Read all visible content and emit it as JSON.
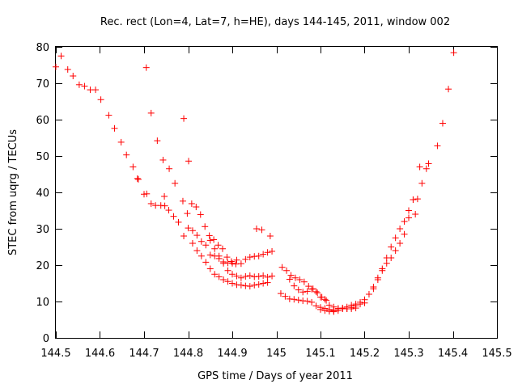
{
  "chart_data": {
    "type": "scatter",
    "title": "Rec. rect (Lon=4, Lat=7, h=HE), days 144-145, 2011, window 002",
    "xlabel": "GPS time / Days of year 2011",
    "ylabel": "STEC from uqrg / TECUs",
    "xlim": [
      144.5,
      145.5
    ],
    "ylim": [
      0,
      80
    ],
    "xticks": [
      "144.5",
      "144.6",
      "144.7",
      "144.8",
      "144.9",
      "145",
      "145.1",
      "145.2",
      "145.3",
      "145.4",
      "145.5"
    ],
    "yticks": [
      "0",
      "10",
      "20",
      "30",
      "40",
      "50",
      "60",
      "70",
      "80"
    ],
    "marker": "+",
    "color": "#ff0000",
    "series": [
      {
        "name": "STEC",
        "x": [
          144.5,
          144.512,
          144.527,
          144.539,
          144.553,
          144.565,
          144.578,
          144.59,
          144.602,
          144.62,
          144.633,
          144.648,
          144.66,
          144.675,
          144.685,
          144.7,
          144.705,
          144.716,
          144.73,
          144.743,
          144.746,
          144.757,
          144.77,
          144.79,
          144.801,
          144.687,
          144.706,
          144.716,
          144.726,
          144.738,
          144.747,
          144.756,
          144.767,
          144.778,
          144.788,
          144.798,
          144.808,
          144.818,
          144.828,
          144.838,
          144.848,
          144.858,
          144.868,
          144.878,
          144.888,
          144.898,
          144.908,
          144.79,
          144.8,
          144.81,
          144.82,
          144.83,
          144.84,
          144.85,
          144.86,
          144.87,
          144.88,
          144.89,
          144.9,
          144.91,
          144.92,
          144.93,
          144.94,
          144.95,
          144.96,
          144.97,
          144.98,
          144.99,
          144.81,
          144.82,
          144.83,
          144.84,
          144.85,
          144.86,
          144.87,
          144.88,
          144.89,
          144.9,
          144.91,
          144.92,
          144.93,
          144.94,
          144.95,
          144.96,
          144.97,
          144.98,
          144.85,
          144.86,
          144.87,
          144.88,
          144.89,
          144.9,
          144.91,
          144.92,
          144.93,
          144.94,
          144.95,
          144.96,
          144.97,
          144.98,
          144.99,
          144.955,
          144.967,
          144.986,
          145.013,
          145.023,
          145.033,
          145.043,
          145.053,
          145.063,
          145.073,
          145.083,
          145.093,
          145.103,
          145.113,
          145.01,
          145.02,
          145.03,
          145.04,
          145.05,
          145.06,
          145.07,
          145.08,
          145.09,
          145.1,
          145.11,
          145.12,
          145.13,
          145.03,
          145.04,
          145.05,
          145.06,
          145.07,
          145.08,
          145.09,
          145.1,
          145.11,
          145.12,
          145.13,
          145.14,
          145.15,
          145.16,
          145.17,
          145.18,
          145.1,
          145.11,
          145.12,
          145.13,
          145.14,
          145.15,
          145.16,
          145.17,
          145.18,
          145.19,
          145.2,
          145.13,
          145.14,
          145.15,
          145.16,
          145.17,
          145.18,
          145.19,
          145.2,
          145.21,
          145.22,
          145.23,
          145.24,
          145.25,
          145.26,
          145.27,
          145.28,
          145.29,
          145.3,
          145.31,
          145.22,
          145.23,
          145.24,
          145.25,
          145.26,
          145.27,
          145.28,
          145.29,
          145.3,
          145.31,
          145.32,
          145.33,
          145.34,
          145.315,
          145.325,
          145.345,
          145.365,
          145.377,
          145.39,
          145.402
        ],
        "y": [
          74.5,
          77.5,
          73.8,
          72.0,
          69.6,
          69.2,
          68.2,
          68.2,
          65.5,
          61.2,
          57.6,
          53.8,
          50.3,
          47.0,
          43.8,
          39.5,
          74.3,
          61.8,
          54.2,
          48.9,
          38.9,
          46.5,
          42.5,
          60.3,
          48.6,
          43.6,
          39.6,
          36.9,
          36.4,
          36.4,
          36.3,
          35.1,
          33.4,
          31.8,
          37.6,
          34.2,
          36.9,
          36.0,
          33.9,
          30.6,
          28.1,
          27.0,
          25.5,
          24.5,
          22.2,
          21.0,
          20.3,
          28.0,
          30.2,
          29.5,
          28.2,
          26.5,
          25.5,
          22.8,
          22.5,
          21.8,
          20.9,
          20.6,
          20.5,
          21.4,
          20.4,
          21.6,
          22.2,
          22.4,
          22.5,
          23.0,
          23.5,
          23.8,
          26.0,
          24.0,
          22.5,
          20.8,
          19.0,
          17.5,
          16.8,
          16.0,
          15.5,
          15.0,
          14.6,
          14.5,
          14.3,
          14.2,
          14.5,
          14.7,
          15.0,
          15.2,
          26.8,
          24.5,
          22.5,
          20.5,
          18.5,
          17.5,
          17.0,
          16.5,
          16.9,
          17.1,
          16.8,
          16.9,
          17.1,
          16.7,
          17.0,
          30.0,
          29.7,
          28.0,
          19.4,
          18.5,
          17.2,
          16.5,
          16.0,
          15.4,
          14.2,
          13.5,
          12.4,
          11.2,
          10.3,
          12.2,
          11.4,
          10.7,
          10.6,
          10.4,
          10.2,
          10.1,
          9.8,
          8.8,
          8.4,
          8.1,
          7.8,
          7.5,
          16.1,
          14.3,
          13.2,
          12.6,
          12.8,
          13.4,
          12.7,
          11.2,
          10.6,
          9.0,
          8.5,
          8.1,
          8.2,
          8.0,
          8.0,
          8.2,
          7.8,
          7.5,
          7.3,
          7.6,
          8.0,
          8.1,
          8.0,
          8.4,
          8.8,
          9.3,
          9.6,
          7.2,
          7.5,
          8.0,
          8.5,
          9.0,
          9.3,
          9.8,
          10.5,
          12.0,
          14.0,
          16.0,
          18.5,
          20.5,
          22.0,
          24.0,
          26.0,
          28.5,
          33.0,
          38.0,
          13.5,
          16.5,
          19.0,
          22.0,
          25.0,
          27.5,
          30.0,
          32.0,
          35.0,
          38.0,
          38.2,
          42.5,
          46.5,
          34.0,
          47.0,
          47.9,
          52.8,
          59.0,
          68.4,
          78.4
        ]
      }
    ]
  }
}
